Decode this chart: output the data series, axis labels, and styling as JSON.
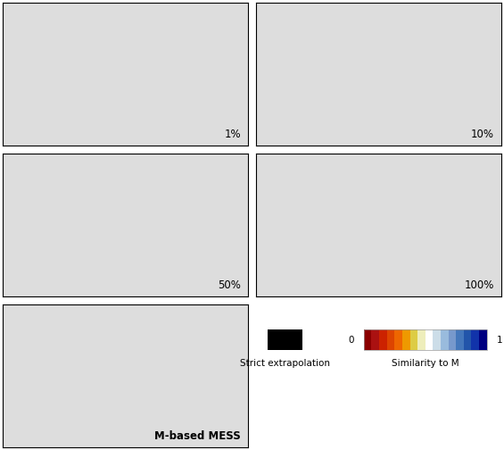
{
  "panel_labels": [
    "1%",
    "10%",
    "50%",
    "100%",
    "M-based MESS"
  ],
  "label_fontsize": 8.5,
  "label_bold": [
    false,
    false,
    false,
    false,
    true
  ],
  "background_color": "#ffffff",
  "panel_border_color": "#555555",
  "colorbar_colors": [
    "#8b0000",
    "#aa1111",
    "#cc2200",
    "#dd4400",
    "#ee6600",
    "#ee9900",
    "#ddcc44",
    "#eeeebb",
    "#ffffff",
    "#ccdde8",
    "#99bbdd",
    "#7799cc",
    "#4477bb",
    "#2255aa",
    "#1133aa",
    "#000080"
  ],
  "ocean_color": "#ffffff",
  "strict_extrap_color": "#000000",
  "legend_label_strict": "Strict extrapolation",
  "legend_label_0": "0",
  "legend_label_sim": "Similarity to M",
  "legend_label_1": "1",
  "legend_text_fontsize": 7.5,
  "fig_width": 5.65,
  "fig_height": 5.04,
  "land_base_color_1pct": "#2a1a8e",
  "land_base_color_10pct": "#2a1a8e",
  "land_base_color_50pct": "#2a1a8e",
  "land_base_color_100pct": "#cc3300",
  "land_base_color_mess": "#cc5500",
  "strict_regions_color": "#000000",
  "map_xlim": [
    -180,
    180
  ],
  "map_ylim": [
    -60,
    85
  ]
}
